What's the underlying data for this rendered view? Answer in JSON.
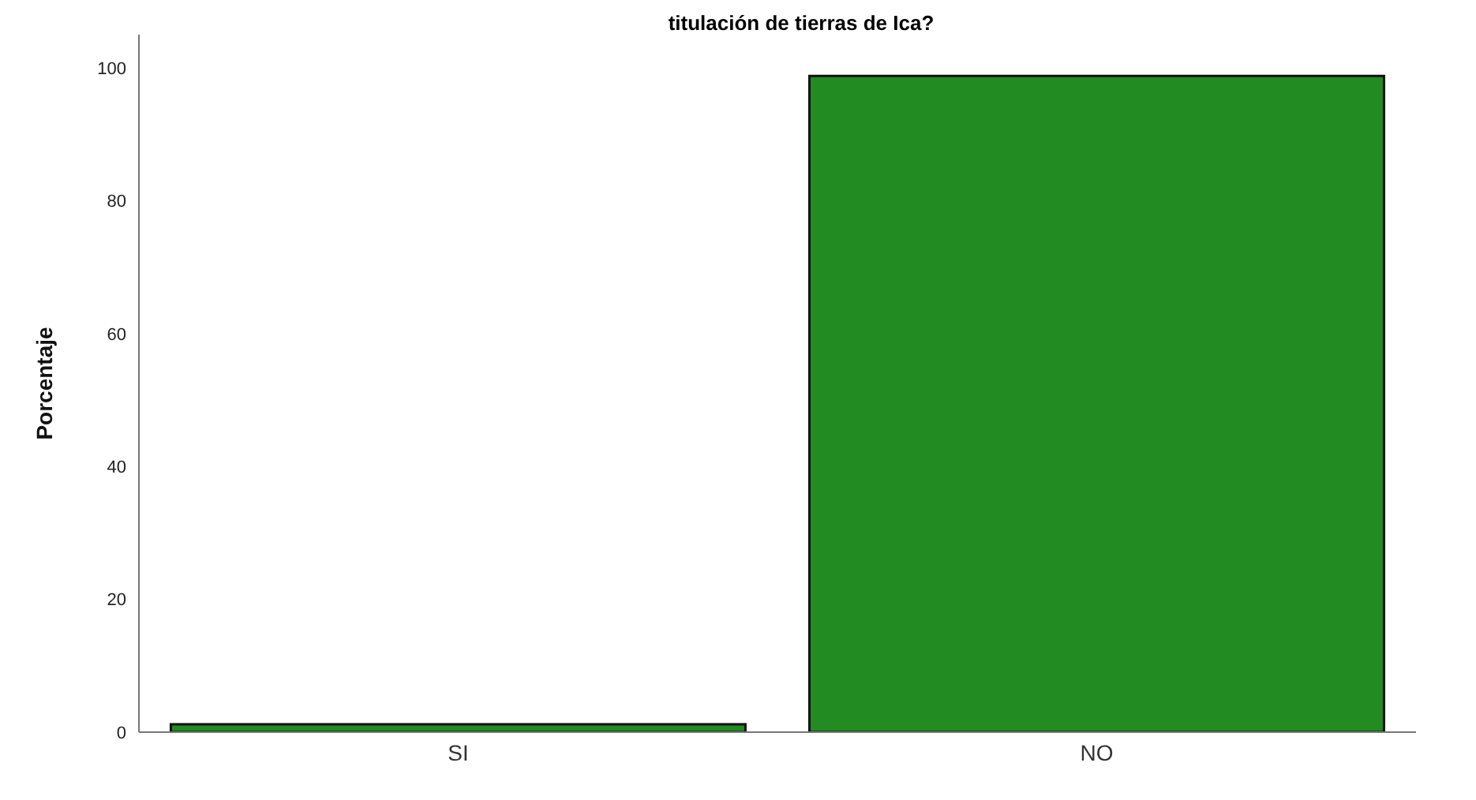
{
  "chart_data": {
    "type": "bar",
    "title": "titulación de tierras de Ica?",
    "ylabel": "Porcentaje",
    "categories": [
      "SI",
      "NO"
    ],
    "values": [
      1.2,
      98.8
    ],
    "color": "#228b22",
    "ylim": [
      0,
      105
    ],
    "yticks": [
      0,
      20,
      40,
      60,
      80,
      100
    ],
    "grid": false,
    "legend": false
  }
}
